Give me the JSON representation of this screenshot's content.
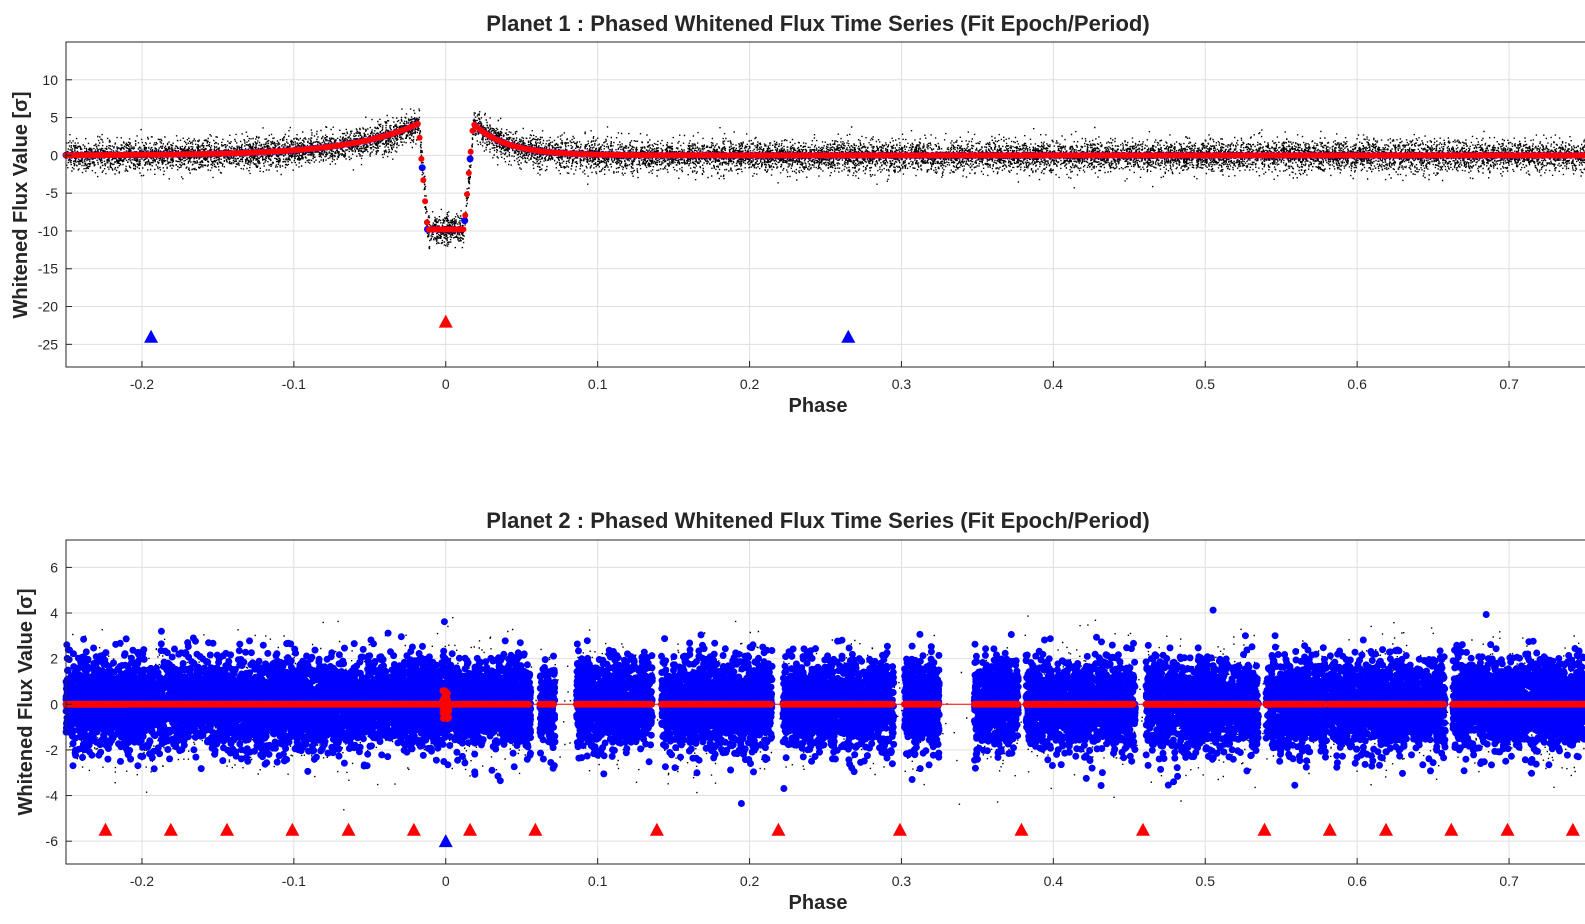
{
  "chart_data": [
    {
      "type": "scatter",
      "title": "Planet 1 : Phased Whitened Flux Time Series (Fit Epoch/Period)",
      "xlabel": "Phase",
      "ylabel": "Whitened Flux Value [σ]",
      "xlim": [
        -0.25,
        0.75
      ],
      "ylim": [
        -28,
        15
      ],
      "xticks": [
        -0.2,
        -0.1,
        0,
        0.1,
        0.2,
        0.3,
        0.4,
        0.5,
        0.6,
        0.7
      ],
      "xticklabels": [
        "-0.2",
        "-0.1",
        "0",
        "0.1",
        "0.2",
        "0.3",
        "0.4",
        "0.5",
        "0.6",
        "0.7"
      ],
      "yticks": [
        10,
        5,
        0,
        -5,
        -10,
        -15,
        -20,
        -25
      ],
      "yticklabels": [
        "10",
        "5",
        "0",
        "-5",
        "-10",
        "-15",
        "-20",
        "-25"
      ],
      "grid": true,
      "colors": {
        "data": "#000000",
        "binned": "#0000ff",
        "model": "#ff0000"
      },
      "transit": {
        "center": 0,
        "depth": -9.8,
        "half_width": 0.018,
        "ingress": 0.006,
        "pre_rise_peak": 4.2,
        "post_peak": 4.2
      },
      "markers": [
        {
          "x": -0.194,
          "y": -24,
          "color": "#0000ff"
        },
        {
          "x": 0.0,
          "y": -22,
          "color": "#ff0000"
        },
        {
          "x": 0.265,
          "y": -24,
          "color": "#0000ff"
        }
      ]
    },
    {
      "type": "scatter",
      "title": "Planet 2 : Phased Whitened Flux Time Series (Fit Epoch/Period)",
      "xlabel": "Phase",
      "ylabel": "Whitened Flux Value [σ]",
      "xlim": [
        -0.25,
        0.75
      ],
      "ylim": [
        -7,
        7.2
      ],
      "xticks": [
        -0.2,
        -0.1,
        0,
        0.1,
        0.2,
        0.3,
        0.4,
        0.5,
        0.6,
        0.7
      ],
      "xticklabels": [
        "-0.2",
        "-0.1",
        "0",
        "0.1",
        "0.2",
        "0.3",
        "0.4",
        "0.5",
        "0.6",
        "0.7"
      ],
      "yticks": [
        6,
        4,
        2,
        0,
        -2,
        -4,
        -6
      ],
      "yticklabels": [
        "6",
        "4",
        "2",
        "0",
        "-2",
        "-4",
        "-6"
      ],
      "grid": true,
      "colors": {
        "data": "#000000",
        "binned": "#0000ff",
        "model": "#ff0000"
      },
      "segments": [
        [
          -0.25,
          0.056
        ],
        [
          0.062,
          0.072
        ],
        [
          0.086,
          0.136
        ],
        [
          0.142,
          0.215
        ],
        [
          0.222,
          0.295
        ],
        [
          0.302,
          0.325
        ],
        [
          0.348,
          0.377
        ],
        [
          0.382,
          0.454
        ],
        [
          0.461,
          0.535
        ],
        [
          0.54,
          0.58
        ],
        [
          0.582,
          0.658
        ],
        [
          0.663,
          0.75
        ]
      ],
      "markers": [
        {
          "x": -0.224,
          "y": -5.5,
          "color": "#ff0000"
        },
        {
          "x": -0.181,
          "y": -5.5,
          "color": "#ff0000"
        },
        {
          "x": -0.144,
          "y": -5.5,
          "color": "#ff0000"
        },
        {
          "x": -0.101,
          "y": -5.5,
          "color": "#ff0000"
        },
        {
          "x": -0.064,
          "y": -5.5,
          "color": "#ff0000"
        },
        {
          "x": -0.021,
          "y": -5.5,
          "color": "#ff0000"
        },
        {
          "x": 0.016,
          "y": -5.5,
          "color": "#ff0000"
        },
        {
          "x": 0.059,
          "y": -5.5,
          "color": "#ff0000"
        },
        {
          "x": 0.139,
          "y": -5.5,
          "color": "#ff0000"
        },
        {
          "x": 0.219,
          "y": -5.5,
          "color": "#ff0000"
        },
        {
          "x": 0.299,
          "y": -5.5,
          "color": "#ff0000"
        },
        {
          "x": 0.379,
          "y": -5.5,
          "color": "#ff0000"
        },
        {
          "x": 0.459,
          "y": -5.5,
          "color": "#ff0000"
        },
        {
          "x": 0.539,
          "y": -5.5,
          "color": "#ff0000"
        },
        {
          "x": 0.582,
          "y": -5.5,
          "color": "#ff0000"
        },
        {
          "x": 0.619,
          "y": -5.5,
          "color": "#ff0000"
        },
        {
          "x": 0.662,
          "y": -5.5,
          "color": "#ff0000"
        },
        {
          "x": 0.699,
          "y": -5.5,
          "color": "#ff0000"
        },
        {
          "x": 0.742,
          "y": -5.5,
          "color": "#ff0000"
        },
        {
          "x": 0.0,
          "y": -6,
          "color": "#0000ff"
        }
      ]
    }
  ]
}
